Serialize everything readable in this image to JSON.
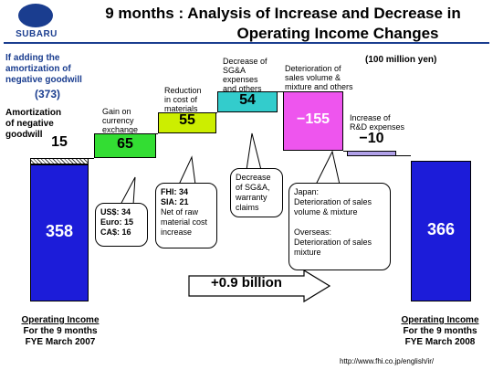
{
  "header": {
    "logo_text": "SUBARU",
    "title_line1": "9 months : Analysis of Increase and Decrease in",
    "title_line2": "Operating Income Changes"
  },
  "unit_note": "(100 million yen)",
  "goodwill_note": {
    "text_line1": "If adding the",
    "text_line2": "amortization of",
    "text_line3": "negative goodwill",
    "value": "(373)"
  },
  "summary_arrow": "+0.9 billion",
  "source_url": "http://www.fhi.co.jp/english/ir/",
  "chart_data": {
    "type": "bar",
    "subtype": "waterfall",
    "unit": "(100 million yen)",
    "categories": [
      "Operating Income For the 9 months FYE March 2007",
      "Amortization of negative goodwill",
      "Gain on currency exchange",
      "Reduction in cost of materials",
      "Decrease of SG&A expenses and others",
      "Deterioration of sales volume & mixture and others",
      "Increase of R&D expenses",
      "Operating Income For the 9 months FYE March 2008"
    ],
    "values": [
      358,
      15,
      65,
      55,
      54,
      -155,
      -10,
      366
    ],
    "labels": [
      "358",
      "15",
      "65",
      "55",
      "54",
      "−155",
      "−10",
      "366"
    ],
    "colors": [
      "#1c1cd9",
      "#ffffff",
      "#33dd33",
      "#ccee00",
      "#33cccc",
      "#ee55ee",
      "#b0a0e8",
      "#1c1cd9"
    ],
    "bar_labels": {
      "amortization": [
        "Amortization",
        "of negative",
        "goodwill"
      ],
      "currency": [
        "Gain on",
        "currency",
        "exchange"
      ],
      "materials": [
        "Reduction",
        "in cost of",
        "materials"
      ],
      "sga": [
        "Decrease of",
        "SG&A",
        "expenses",
        "and others"
      ],
      "sales": [
        "Deterioration of",
        "sales volume &",
        "mixture and others"
      ],
      "rnd": [
        "Increase of",
        "R&D expenses"
      ]
    },
    "start_label": {
      "line1": "Operating Income",
      "line2": "For the 9 months",
      "line3": "FYE March 2007"
    },
    "end_label": {
      "line1": "Operating Income",
      "line2": "For the 9 months",
      "line3": "FYE March 2008"
    },
    "callouts": {
      "currency": [
        "US$: 34",
        "Euro: 15",
        "CA$: 16"
      ],
      "materials": [
        "FHI: 34",
        "SIA: 21",
        "Net of raw",
        "material cost",
        "increase"
      ],
      "sga": [
        "Decrease",
        "of SG&A,",
        "warranty",
        "claims"
      ],
      "sales": [
        "Japan:",
        "Deterioration of sales",
        "volume & mixture",
        "",
        "Overseas:",
        "Deterioration of sales",
        "mixture"
      ]
    }
  }
}
